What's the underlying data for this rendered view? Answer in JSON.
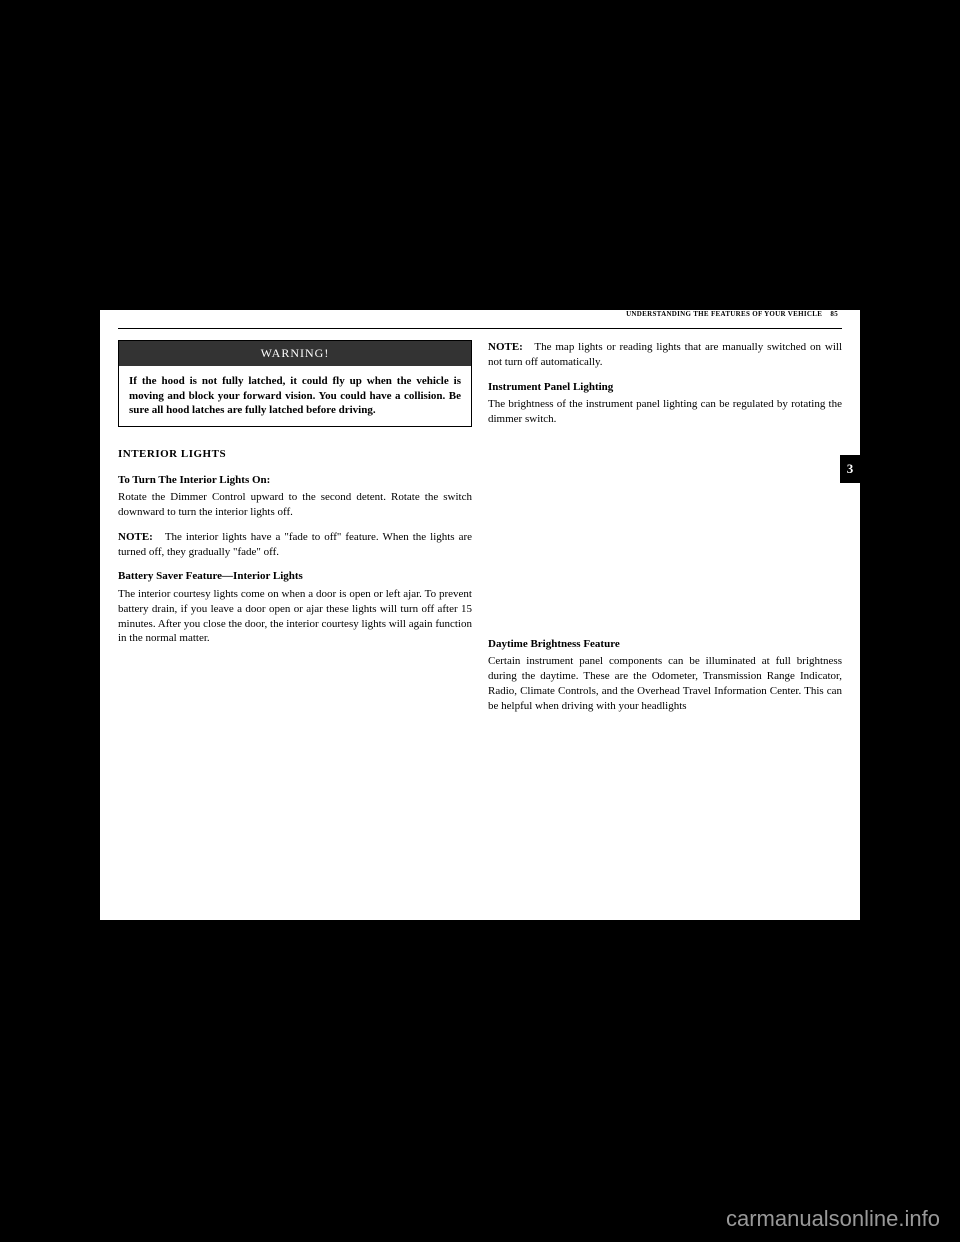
{
  "header": {
    "section_title": "UNDERSTANDING THE FEATURES OF YOUR VEHICLE",
    "page_number": "85"
  },
  "section_tab": "3",
  "warning": {
    "title": "WARNING!",
    "body": "If the hood is not fully latched, it could fly up when the vehicle is moving and block your forward vision. You could have a collision. Be sure all hood latches are fully latched before driving."
  },
  "left_column": {
    "section_heading": "INTERIOR LIGHTS",
    "sub1_heading": "To Turn The Interior Lights On:",
    "sub1_body": "Rotate the Dimmer Control upward to the second detent. Rotate the switch downward to turn the interior lights off.",
    "note1_label": "NOTE:",
    "note1_body": "The interior lights have a \"fade to off\" feature. When the lights are turned off, they gradually \"fade\" off.",
    "sub2_heading": "Battery Saver Feature—Interior Lights",
    "sub2_body": "The interior courtesy lights come on when a door is open or left ajar. To prevent battery drain, if you leave a door open or ajar these lights will turn off after 15 minutes. After you close the door, the interior courtesy lights will again function in the normal matter."
  },
  "right_column": {
    "note2_label": "NOTE:",
    "note2_body": "The map lights or reading lights that are manually switched on will not turn off automatically.",
    "sub3_heading": "Instrument Panel Lighting",
    "sub3_body": "The brightness of the instrument panel lighting can be regulated by rotating the dimmer switch.",
    "sub4_heading": "Daytime Brightness Feature",
    "sub4_body": "Certain instrument panel components can be illuminated at full brightness during the daytime. These are the Odometer, Transmission Range Indicator, Radio, Climate Controls, and the Overhead Travel Information Center. This can be helpful when driving with your headlights"
  },
  "watermark": "carmanualsonline.info"
}
